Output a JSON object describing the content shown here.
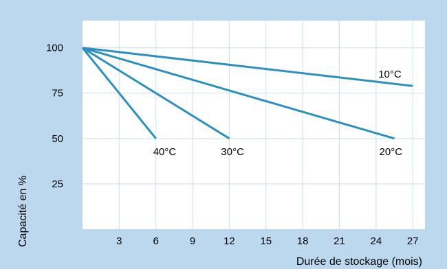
{
  "chart_data": {
    "type": "line",
    "xlabel": "Durée de stockage (mois)",
    "ylabel": "Capacité en %",
    "x_ticks": [
      3,
      6,
      9,
      12,
      15,
      18,
      21,
      24,
      27
    ],
    "y_ticks": [
      25,
      50,
      75,
      100
    ],
    "xlim": [
      0,
      28
    ],
    "ylim": [
      0,
      115
    ],
    "grid": true,
    "series": [
      {
        "name": "10°C",
        "x": [
          0,
          27
        ],
        "y": [
          100,
          79
        ]
      },
      {
        "name": "20°C",
        "x": [
          0,
          25.5
        ],
        "y": [
          100,
          50
        ]
      },
      {
        "name": "30°C",
        "x": [
          0,
          12
        ],
        "y": [
          100,
          50
        ]
      },
      {
        "name": "40°C",
        "x": [
          0,
          6
        ],
        "y": [
          100,
          50
        ]
      }
    ]
  },
  "colors": {
    "background": "#bcd8ef",
    "plot_area": "#ffffff",
    "line": "#2a8fc2",
    "grid": "#c9dff0"
  }
}
